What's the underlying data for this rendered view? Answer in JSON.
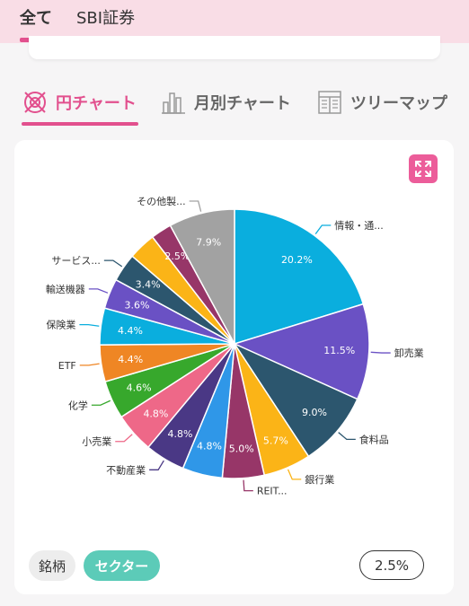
{
  "top_tabs": [
    {
      "label": "全て",
      "active": true
    },
    {
      "label": "SBI証券",
      "active": false
    }
  ],
  "view_tabs": [
    {
      "label": "円チャート",
      "icon": "pie-chart-icon",
      "active": true
    },
    {
      "label": "月別チャート",
      "icon": "bar-chart-icon",
      "active": false
    },
    {
      "label": "ツリーマップ",
      "icon": "treemap-icon",
      "active": false
    }
  ],
  "colors": {
    "accent": "#e2508e",
    "sector_button": "#5ccbb8",
    "top_bar": "#f9dde6"
  },
  "chart_data": {
    "type": "pie",
    "start": "12 o'clock",
    "direction": "clockwise",
    "slices": [
      {
        "label": "情報・通...",
        "value": 20.2,
        "display": "20.2%",
        "color": "#0aaede"
      },
      {
        "label": "卸売業",
        "value": 11.5,
        "display": "11.5%",
        "color": "#6a51c4"
      },
      {
        "label": "食料品",
        "value": 9.0,
        "display": "9.0%",
        "color": "#2c566e"
      },
      {
        "label": "銀行業",
        "value": 5.7,
        "display": "5.7%",
        "color": "#fbb417"
      },
      {
        "label": "REIT...",
        "value": 5.0,
        "display": "5.0%",
        "color": "#973668"
      },
      {
        "label": "",
        "value": 4.8,
        "display": "4.8%",
        "color": "#2f97e8"
      },
      {
        "label": "不動産業",
        "value": 4.8,
        "display": "4.8%",
        "color": "#4a3885"
      },
      {
        "label": "小売業",
        "value": 4.8,
        "display": "4.8%",
        "color": "#ee6888"
      },
      {
        "label": "化学",
        "value": 4.6,
        "display": "4.6%",
        "color": "#37a82c"
      },
      {
        "label": "ETF",
        "value": 4.4,
        "display": "4.4%",
        "color": "#ef8624"
      },
      {
        "label": "保険業",
        "value": 4.4,
        "display": "4.4%",
        "color": "#0aaede"
      },
      {
        "label": "輸送機器",
        "value": 3.6,
        "display": "3.6%",
        "color": "#6a51c4"
      },
      {
        "label": "サービス...",
        "value": 3.4,
        "display": "3.4%",
        "color": "#2c566e"
      },
      {
        "label": "",
        "value": 3.3,
        "display": "",
        "color": "#fbb417"
      },
      {
        "label": "",
        "value": 2.5,
        "display": "2.5%",
        "color": "#973668"
      },
      {
        "label": "その他製...",
        "value": 7.9,
        "display": "7.9%",
        "color": "#a2a2a2"
      }
    ]
  },
  "bottom": {
    "stock_label": "銘柄",
    "sector_label": "セクター",
    "threshold_value": "2.5%"
  }
}
